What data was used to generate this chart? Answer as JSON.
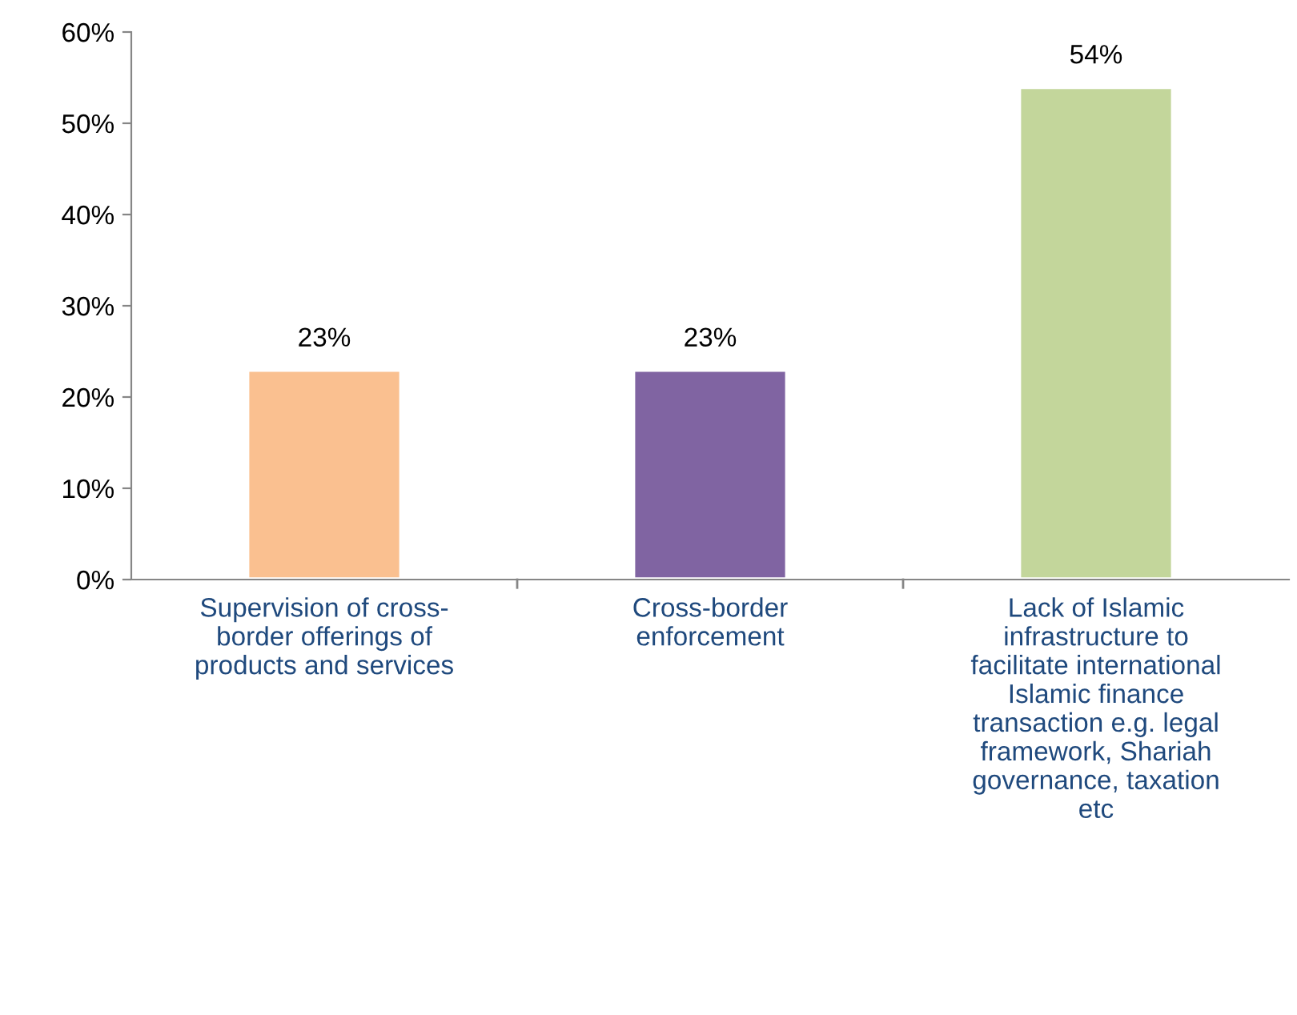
{
  "chart_data": {
    "type": "bar",
    "categories": [
      "Supervision of cross-\nborder offerings of\nproducts and services",
      "Cross-border\nenforcement",
      "Lack of Islamic\ninfrastructure to\nfacilitate international\nIslamic finance\ntransaction e.g. legal\nframework, Shariah\ngovernance, taxation\netc"
    ],
    "values": [
      23,
      23,
      54
    ],
    "colors": [
      "#fac090",
      "#8064a2",
      "#c3d69b"
    ],
    "value_labels": [
      "23%",
      "23%",
      "54%"
    ],
    "ylim": [
      0,
      60
    ],
    "yticks": [
      {
        "value": 0,
        "label": "0%"
      },
      {
        "value": 10,
        "label": "10%"
      },
      {
        "value": 20,
        "label": "20%"
      },
      {
        "value": 30,
        "label": "30%"
      },
      {
        "value": 40,
        "label": "40%"
      },
      {
        "value": 50,
        "label": "50%"
      },
      {
        "value": 60,
        "label": "60%"
      }
    ],
    "grid": false,
    "legend": false
  }
}
